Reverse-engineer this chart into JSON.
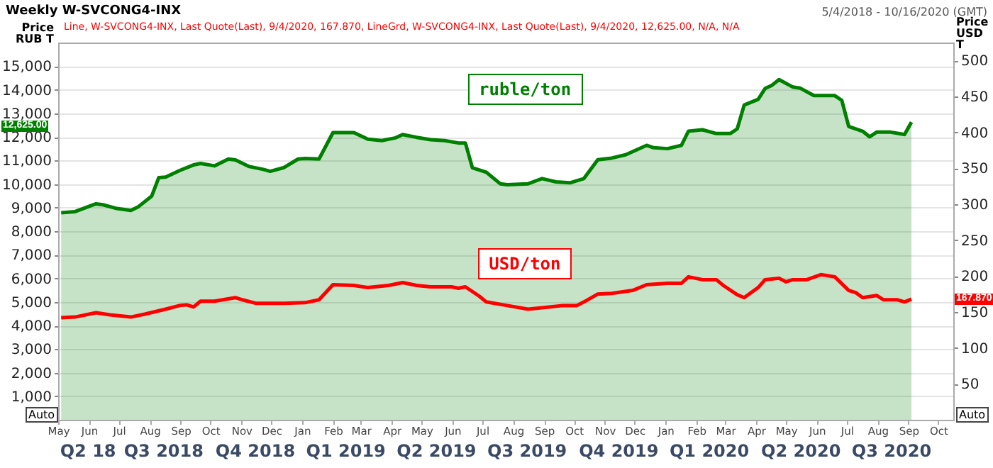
{
  "chart_data": {
    "type": "line",
    "title": "Weekly W-SVCONG4-INX",
    "subtitle": "5/4/2018 - 10/16/2020 (GMT)",
    "ylabel": "Price RUB T",
    "y2label": "Price USD T",
    "annotations": [
      "Line, W-SVCONG4-INX, Last Quote(Last), 9/4/2020, 167.870, LineGrd, W-SVCONG4-INX, Last Quote(Last), 9/4/2020, 12,625.00, N/A, N/A",
      "12,625.00",
      "167.870",
      "Auto",
      "Auto"
    ],
    "xlim": [
      "2018-05-01",
      "2020-10-16"
    ],
    "xticks": [
      {
        "value": "2018-05-01",
        "label": "May"
      },
      {
        "value": "2018-06-01",
        "label": "Jun"
      },
      {
        "value": "2018-07-01",
        "label": "Jul"
      },
      {
        "value": "2018-08-01",
        "label": "Aug"
      },
      {
        "value": "2018-09-01",
        "label": "Sep"
      },
      {
        "value": "2018-10-01",
        "label": "Oct"
      },
      {
        "value": "2018-11-01",
        "label": "Nov"
      },
      {
        "value": "2018-12-01",
        "label": "Dec"
      },
      {
        "value": "2019-01-01",
        "label": "Jan"
      },
      {
        "value": "2019-02-01",
        "label": "Feb"
      },
      {
        "value": "2019-03-01",
        "label": "Mar"
      },
      {
        "value": "2019-04-01",
        "label": "Apr"
      },
      {
        "value": "2019-05-01",
        "label": "May"
      },
      {
        "value": "2019-06-01",
        "label": "Jun"
      },
      {
        "value": "2019-07-01",
        "label": "Jul"
      },
      {
        "value": "2019-08-01",
        "label": "Aug"
      },
      {
        "value": "2019-09-01",
        "label": "Sep"
      },
      {
        "value": "2019-10-01",
        "label": "Oct"
      },
      {
        "value": "2019-11-01",
        "label": "Nov"
      },
      {
        "value": "2019-12-01",
        "label": "Dec"
      },
      {
        "value": "2020-01-01",
        "label": "Jan"
      },
      {
        "value": "2020-02-01",
        "label": "Feb"
      },
      {
        "value": "2020-03-01",
        "label": "Mar"
      },
      {
        "value": "2020-04-01",
        "label": "Apr"
      },
      {
        "value": "2020-05-01",
        "label": "May"
      },
      {
        "value": "2020-06-01",
        "label": "Jun"
      },
      {
        "value": "2020-07-01",
        "label": "Jul"
      },
      {
        "value": "2020-08-01",
        "label": "Aug"
      },
      {
        "value": "2020-09-01",
        "label": "Sep"
      },
      {
        "value": "2020-10-01",
        "label": "Oct"
      }
    ],
    "x2lim": [
      "2018-05-01",
      "2020-10-16"
    ],
    "x2ticks": [
      {
        "value": "2018-05-31",
        "label": "Q2 18"
      },
      {
        "value": "2018-08-15",
        "label": "Q3 2018"
      },
      {
        "value": "2018-11-15",
        "label": "Q4 2018"
      },
      {
        "value": "2019-02-14",
        "label": "Q1 2019"
      },
      {
        "value": "2019-05-16",
        "label": "Q2 2019"
      },
      {
        "value": "2019-08-15",
        "label": "Q3 2019"
      },
      {
        "value": "2019-11-15",
        "label": "Q4 2019"
      },
      {
        "value": "2020-02-14",
        "label": "Q1 2020"
      },
      {
        "value": "2020-05-16",
        "label": "Q2 2020"
      },
      {
        "value": "2020-08-15",
        "label": "Q3 2020"
      }
    ],
    "ylim": [
      0,
      16000
    ],
    "yticks": [
      {
        "value": 1000,
        "label": "1,000"
      },
      {
        "value": 2000,
        "label": "2,000"
      },
      {
        "value": 3000,
        "label": "3,000"
      },
      {
        "value": 4000,
        "label": "4,000"
      },
      {
        "value": 5000,
        "label": "5,000"
      },
      {
        "value": 6000,
        "label": "6,000"
      },
      {
        "value": 7000,
        "label": "7,000"
      },
      {
        "value": 8000,
        "label": "8,000"
      },
      {
        "value": 9000,
        "label": "9,000"
      },
      {
        "value": 10000,
        "label": "10,000"
      },
      {
        "value": 11000,
        "label": "11,000"
      },
      {
        "value": 12000,
        "label": "12,000"
      },
      {
        "value": 13000,
        "label": "13,000"
      },
      {
        "value": 14000,
        "label": "14,000"
      },
      {
        "value": 15000,
        "label": "15,000"
      }
    ],
    "y2lim": [
      0,
      525
    ],
    "y2ticks": [
      50,
      100,
      150,
      200,
      250,
      300,
      350,
      400,
      450,
      500
    ],
    "grid": "y",
    "series": [
      {
        "name": "ruble/ton",
        "type": "area",
        "color": "#008000",
        "x": [
          "2018-05-04",
          "2018-05-18",
          "2018-06-08",
          "2018-06-15",
          "2018-06-29",
          "2018-07-13",
          "2018-07-20",
          "2018-08-03",
          "2018-08-10",
          "2018-08-17",
          "2018-08-31",
          "2018-09-14",
          "2018-09-21",
          "2018-10-05",
          "2018-10-19",
          "2018-10-26",
          "2018-11-09",
          "2018-11-23",
          "2018-11-30",
          "2018-12-14",
          "2018-12-28",
          "2019-01-04",
          "2019-01-18",
          "2019-02-01",
          "2019-02-22",
          "2019-03-08",
          "2019-03-22",
          "2019-04-05",
          "2019-04-12",
          "2019-04-26",
          "2019-05-10",
          "2019-05-24",
          "2019-06-07",
          "2019-06-14",
          "2019-06-21",
          "2019-07-05",
          "2019-07-19",
          "2019-07-26",
          "2019-08-16",
          "2019-08-30",
          "2019-09-13",
          "2019-09-27",
          "2019-10-11",
          "2019-10-25",
          "2019-11-08",
          "2019-11-22",
          "2019-12-13",
          "2019-12-20",
          "2020-01-03",
          "2020-01-17",
          "2020-01-24",
          "2020-02-07",
          "2020-02-21",
          "2020-03-06",
          "2020-03-13",
          "2020-03-20",
          "2020-04-03",
          "2020-04-10",
          "2020-04-17",
          "2020-04-24",
          "2020-05-08",
          "2020-05-15",
          "2020-05-29",
          "2020-06-19",
          "2020-06-26",
          "2020-07-03",
          "2020-07-17",
          "2020-07-24",
          "2020-07-31",
          "2020-08-14",
          "2020-08-28",
          "2020-09-04"
        ],
        "values": [
          8780,
          8830,
          9160,
          9120,
          8960,
          8880,
          9020,
          9490,
          10270,
          10290,
          10570,
          10810,
          10870,
          10770,
          11060,
          11020,
          10740,
          10620,
          10540,
          10700,
          11060,
          11080,
          11060,
          12180,
          12180,
          11900,
          11840,
          11960,
          12100,
          11980,
          11880,
          11840,
          11740,
          11740,
          10690,
          10500,
          10010,
          9970,
          10010,
          10230,
          10090,
          10050,
          10230,
          11030,
          11100,
          11240,
          11640,
          11540,
          11500,
          11640,
          12240,
          12300,
          12140,
          12140,
          12340,
          13350,
          13590,
          14050,
          14190,
          14430,
          14110,
          14070,
          13750,
          13750,
          13550,
          12440,
          12240,
          12000,
          12200,
          12200,
          12100,
          12625
        ]
      },
      {
        "name": "USD/ton",
        "type": "line",
        "axis": "y2",
        "color": "#ff0000",
        "x": [
          "2018-05-04",
          "2018-05-18",
          "2018-06-08",
          "2018-06-22",
          "2018-07-13",
          "2018-07-27",
          "2018-08-17",
          "2018-08-31",
          "2018-09-07",
          "2018-09-14",
          "2018-09-21",
          "2018-10-05",
          "2018-10-26",
          "2018-11-02",
          "2018-11-16",
          "2018-11-30",
          "2018-12-14",
          "2019-01-04",
          "2019-01-18",
          "2019-02-01",
          "2019-02-22",
          "2019-03-08",
          "2019-03-15",
          "2019-03-29",
          "2019-04-12",
          "2019-04-26",
          "2019-05-10",
          "2019-05-31",
          "2019-06-07",
          "2019-06-14",
          "2019-06-28",
          "2019-07-05",
          "2019-07-26",
          "2019-08-16",
          "2019-09-06",
          "2019-09-20",
          "2019-10-04",
          "2019-10-11",
          "2019-10-25",
          "2019-11-08",
          "2019-11-29",
          "2019-12-13",
          "2020-01-03",
          "2020-01-17",
          "2020-01-24",
          "2020-02-07",
          "2020-02-21",
          "2020-02-28",
          "2020-03-13",
          "2020-03-20",
          "2020-04-03",
          "2020-04-10",
          "2020-04-24",
          "2020-05-01",
          "2020-05-08",
          "2020-05-22",
          "2020-06-05",
          "2020-06-19",
          "2020-07-03",
          "2020-07-10",
          "2020-07-17",
          "2020-07-31",
          "2020-08-07",
          "2020-08-21",
          "2020-08-28",
          "2020-09-04"
        ],
        "values": [
          142,
          143,
          149,
          146,
          143,
          147,
          154,
          159,
          160,
          157,
          165,
          165,
          170,
          167,
          162,
          162,
          162,
          163,
          167,
          188,
          187,
          184,
          185,
          187,
          191,
          187,
          185,
          185,
          183,
          185,
          172,
          164,
          159,
          154,
          157,
          159,
          159,
          164,
          175,
          176,
          180,
          188,
          190,
          190,
          199,
          195,
          195,
          187,
          174,
          170,
          184,
          195,
          197,
          192,
          195,
          195,
          202,
          199,
          180,
          177,
          170,
          173,
          167,
          167,
          164,
          167.87
        ]
      }
    ]
  }
}
